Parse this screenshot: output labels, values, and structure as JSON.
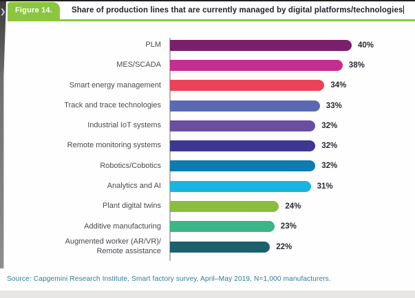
{
  "figure": {
    "badge_label": "Figure 14.",
    "title": "Share of production lines that are currently managed by digital platforms/technologies"
  },
  "chart_data": {
    "type": "bar",
    "orientation": "horizontal",
    "title": "Share of production lines that are currently managed by digital platforms/technologies",
    "xlabel": "",
    "ylabel": "",
    "xlim": [
      0,
      45
    ],
    "grid": false,
    "legend": false,
    "value_label_position": "end-of-bar",
    "categories": [
      "PLM",
      "MES/SCADA",
      "Smart energy management",
      "Track and trace technologies",
      "Industrial IoT systems",
      "Remote monitoring systems",
      "Robotics/Cobotics",
      "Analytics and AI",
      "Plant digital twins",
      "Additive manufacturing",
      "Augmented worker (AR/VR)/\nRemote assistance"
    ],
    "values": [
      40,
      38,
      34,
      33,
      32,
      32,
      32,
      31,
      24,
      23,
      22
    ],
    "value_labels": [
      "40%",
      "38%",
      "34%",
      "33%",
      "32%",
      "32%",
      "32%",
      "31%",
      "24%",
      "23%",
      "22%"
    ],
    "bar_colors": [
      "#7B1F6B",
      "#C62D90",
      "#EC4257",
      "#5B69B3",
      "#6A4EA2",
      "#3E3793",
      "#0E7BB1",
      "#17B5E0",
      "#8BBE3F",
      "#3AB687",
      "#1C5F6E"
    ]
  },
  "source": "Source: Capgemini Research Institute, Smart factory survey, April–May 2019, N=1,000 manufacturers.",
  "icons": {
    "page_nav_arrow": "❯"
  },
  "theme": {
    "accent_green": "#8CC63F",
    "title_color": "#22222C",
    "label_color": "#49494F",
    "value_color": "#2C2933",
    "source_color": "#2F7D9D",
    "axis_color": "#B3B1B5"
  }
}
